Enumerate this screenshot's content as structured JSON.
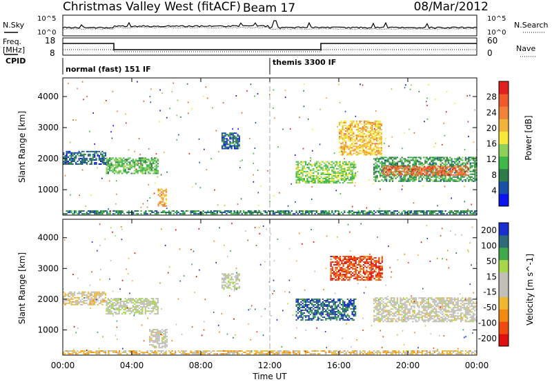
{
  "header": {
    "station": "Christmas Valley West (fitACF)",
    "beam": "Beam 17",
    "date": "08/Mar/2012"
  },
  "noise_panel": {
    "left_label": "N.Sky",
    "right_label": "N.Search",
    "left_ticks": [
      "10^5",
      "10^0"
    ],
    "right_ticks": [
      "10^5",
      "10^0"
    ]
  },
  "freq_panel": {
    "left_label_1": "Freq.",
    "left_label_2": "[MHz]",
    "right_label": "Nave",
    "left_ticks": [
      "18",
      "8"
    ],
    "right_ticks": [
      "60",
      "0"
    ]
  },
  "cpid_panel": {
    "label": "CPID",
    "mode_1": "normal (fast) 151 IF",
    "mode_2": "themis 3300 IF"
  },
  "chart_data": [
    {
      "type": "heatmap",
      "title": "",
      "ylabel": "Slant Range [km]",
      "xlabel": "",
      "xlim": [
        "00:00",
        "24:00"
      ],
      "ylim": [
        180,
        4600
      ],
      "yticks": [
        "1000",
        "2000",
        "3000",
        "4000"
      ],
      "colorbar": {
        "label": "Power [dB]",
        "ticks": [
          "4",
          "8",
          "12",
          "16",
          "20",
          "24",
          "28"
        ],
        "range": [
          0,
          32
        ],
        "colors": [
          "#0b14f0",
          "#1a4fa8",
          "#2f7a4a",
          "#3fb84a",
          "#8ed05a",
          "#f6e93a",
          "#f0b43a",
          "#f0823a",
          "#f05a2a",
          "#e02020"
        ]
      },
      "regions": [
        {
          "t0": 0.0,
          "t1": 2.5,
          "r0": 1800,
          "r1": 2250,
          "value": 6
        },
        {
          "t0": 2.5,
          "t1": 5.5,
          "r0": 1500,
          "r1": 2000,
          "value": 12
        },
        {
          "t0": 5.5,
          "t1": 6.0,
          "r0": 450,
          "r1": 1000,
          "value": 22
        },
        {
          "t0": 0.0,
          "t1": 24.0,
          "r0": 200,
          "r1": 320,
          "value": 8
        },
        {
          "t0": 9.2,
          "t1": 10.2,
          "r0": 2300,
          "r1": 2800,
          "value": 6
        },
        {
          "t0": 13.5,
          "t1": 17.0,
          "r0": 1200,
          "r1": 1900,
          "value": 14
        },
        {
          "t0": 16.0,
          "t1": 18.5,
          "r0": 2100,
          "r1": 3200,
          "value": 20
        },
        {
          "t0": 18.0,
          "t1": 24.0,
          "r0": 1250,
          "r1": 2050,
          "value": 10
        },
        {
          "t0": 18.5,
          "t1": 23.5,
          "r0": 1450,
          "r1": 1750,
          "value": 26
        }
      ]
    },
    {
      "type": "heatmap",
      "title": "",
      "ylabel": "Slant Range [km]",
      "xlabel": "Time UT",
      "xticks": [
        "00:00",
        "04:00",
        "08:00",
        "12:00",
        "16:00",
        "20:00",
        "00:00"
      ],
      "xlim": [
        "00:00",
        "24:00"
      ],
      "ylim": [
        180,
        4600
      ],
      "yticks": [
        "1000",
        "2000",
        "3000",
        "4000"
      ],
      "colorbar": {
        "label": "Velocity [m s^-1]",
        "ticks": [
          "200",
          "100",
          "50",
          "15",
          "-15",
          "-50",
          "-100",
          "-200"
        ],
        "range": [
          -250,
          250
        ],
        "colors": [
          "#e01010",
          "#f04a10",
          "#f08a10",
          "#f0b830",
          "#c0c0b8",
          "#c0c0b8",
          "#a8d84a",
          "#3ea84a",
          "#2f6a7a",
          "#1a2fd0"
        ]
      },
      "regions": [
        {
          "t0": 0.0,
          "t1": 2.5,
          "r0": 1800,
          "r1": 2250,
          "value": -40
        },
        {
          "t0": 2.5,
          "t1": 5.5,
          "r0": 1500,
          "r1": 2000,
          "value": 30
        },
        {
          "t0": 5.0,
          "t1": 6.0,
          "r0": 400,
          "r1": 1000,
          "value": 0
        },
        {
          "t0": 0.0,
          "t1": 24.0,
          "r0": 200,
          "r1": 320,
          "value": -60
        },
        {
          "t0": 9.2,
          "t1": 10.2,
          "r0": 2300,
          "r1": 2800,
          "value": 20
        },
        {
          "t0": 13.5,
          "t1": 17.0,
          "r0": 1300,
          "r1": 2000,
          "value": 180
        },
        {
          "t0": 15.5,
          "t1": 18.5,
          "r0": 2600,
          "r1": 3400,
          "value": -180
        },
        {
          "t0": 18.0,
          "t1": 24.0,
          "r0": 1250,
          "r1": 2050,
          "value": 0
        }
      ]
    }
  ]
}
